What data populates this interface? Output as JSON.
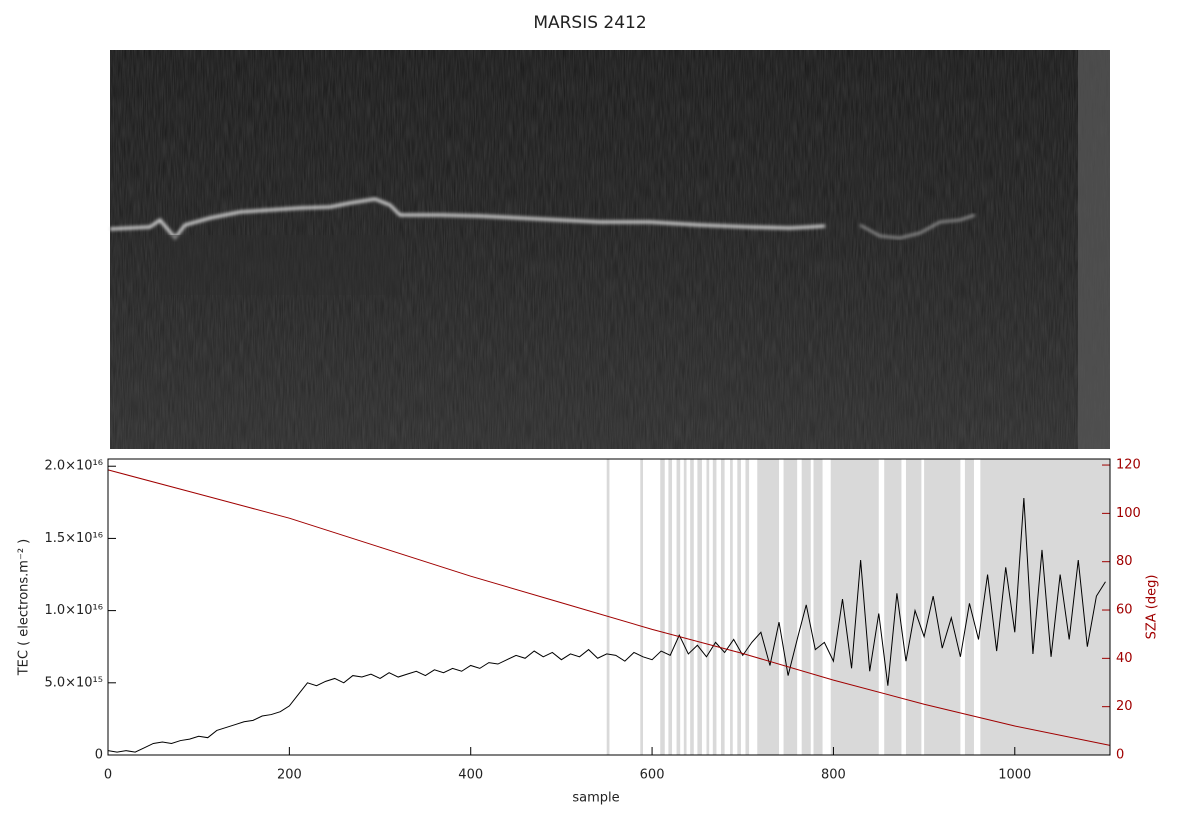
{
  "chart_data": {
    "type": "line",
    "title": "MARSIS 2412",
    "xlabel": "sample",
    "ylabel": "TEC ( electrons.m⁻² )",
    "y2label": "SZA (deg)",
    "xlim": [
      0,
      1105
    ],
    "xticks": [
      0,
      200,
      400,
      600,
      800,
      1000
    ],
    "ylim": [
      0,
      2.05e+16
    ],
    "yticks": [
      0,
      {
        "value": 5000000000000000.0,
        "label": "5.0×10¹⁵"
      },
      {
        "value": 1e+16,
        "label": "1.0×10¹⁶"
      },
      {
        "value": 1.5e+16,
        "label": "1.5×10¹⁶"
      },
      {
        "value": 2e+16,
        "label": "2.0×10¹⁶"
      }
    ],
    "y2lim": [
      0,
      122.5
    ],
    "y2ticks": [
      0,
      20,
      40,
      60,
      80,
      100,
      120
    ],
    "shade_color": "#d9d9d9",
    "shaded_ranges": [
      [
        550,
        553
      ],
      [
        587,
        590
      ],
      [
        609,
        614
      ],
      [
        618,
        622
      ],
      [
        627,
        631
      ],
      [
        635,
        638
      ],
      [
        642,
        646
      ],
      [
        650,
        655
      ],
      [
        660,
        663
      ],
      [
        667,
        671
      ],
      [
        676,
        680
      ],
      [
        686,
        689
      ],
      [
        694,
        698
      ],
      [
        703,
        707
      ],
      [
        716,
        740
      ],
      [
        745,
        760
      ],
      [
        765,
        775
      ],
      [
        778,
        788
      ],
      [
        797,
        850
      ],
      [
        856,
        875
      ],
      [
        880,
        897
      ],
      [
        900,
        940
      ],
      [
        945,
        955
      ],
      [
        962,
        1105
      ]
    ],
    "series": [
      {
        "color": "#000000",
        "x": [
          0,
          10,
          20,
          30,
          40,
          50,
          60,
          70,
          80,
          90,
          100,
          110,
          120,
          130,
          140,
          150,
          160,
          170,
          180,
          190,
          200,
          210,
          220,
          230,
          240,
          250,
          260,
          270,
          280,
          290,
          300,
          310,
          320,
          330,
          340,
          350,
          360,
          370,
          380,
          390,
          400,
          410,
          420,
          430,
          440,
          450,
          460,
          470,
          480,
          490,
          500,
          510,
          520,
          530,
          540,
          550,
          560,
          570,
          580,
          590,
          600,
          610,
          620,
          630,
          640,
          650,
          660,
          670,
          680,
          690,
          700,
          710,
          720,
          730,
          740,
          750,
          760,
          770,
          780,
          790,
          800,
          810,
          820,
          830,
          840,
          850,
          860,
          870,
          880,
          890,
          900,
          910,
          920,
          930,
          940,
          950,
          960,
          970,
          980,
          990,
          1000,
          1010,
          1020,
          1030,
          1040,
          1050,
          1060,
          1070,
          1080,
          1090,
          1100
        ],
        "values": [
          300000000000000.0,
          200000000000000.0,
          300000000000000.0,
          200000000000000.0,
          500000000000000.0,
          800000000000000.0,
          900000000000000.0,
          800000000000000.0,
          1000000000000000.0,
          1100000000000000.0,
          1300000000000000.0,
          1200000000000000.0,
          1700000000000000.0,
          1900000000000000.0,
          2100000000000000.0,
          2300000000000000.0,
          2400000000000000.0,
          2700000000000000.0,
          2800000000000000.0,
          3000000000000000.0,
          3400000000000000.0,
          4200000000000000.0,
          5000000000000000.0,
          4800000000000000.0,
          5100000000000000.0,
          5300000000000000.0,
          5000000000000000.0,
          5500000000000000.0,
          5400000000000000.0,
          5600000000000000.0,
          5300000000000000.0,
          5700000000000000.0,
          5400000000000000.0,
          5600000000000000.0,
          5800000000000000.0,
          5500000000000000.0,
          5900000000000000.0,
          5700000000000000.0,
          6000000000000000.0,
          5800000000000000.0,
          6200000000000000.0,
          6000000000000000.0,
          6400000000000000.0,
          6300000000000000.0,
          6600000000000000.0,
          6900000000000000.0,
          6700000000000000.0,
          7200000000000000.0,
          6800000000000000.0,
          7100000000000000.0,
          6600000000000000.0,
          7000000000000000.0,
          6800000000000000.0,
          7300000000000000.0,
          6700000000000000.0,
          7000000000000000.0,
          6900000000000000.0,
          6500000000000000.0,
          7100000000000000.0,
          6800000000000000.0,
          6600000000000000.0,
          7200000000000000.0,
          6900000000000000.0,
          8300000000000000.0,
          7000000000000000.0,
          7600000000000000.0,
          6800000000000000.0,
          7800000000000000.0,
          7100000000000000.0,
          8000000000000000.0,
          6900000000000000.0,
          7800000000000000.0,
          8500000000000000.0,
          6200000000000000.0,
          9200000000000000.0,
          5500000000000000.0,
          8000000000000000.0,
          1.04e+16,
          7300000000000000.0,
          7800000000000000.0,
          6500000000000000.0,
          1.08e+16,
          6000000000000000.0,
          1.35e+16,
          5800000000000000.0,
          9800000000000000.0,
          4800000000000000.0,
          1.12e+16,
          6500000000000000.0,
          1e+16,
          8200000000000000.0,
          1.1e+16,
          7400000000000000.0,
          9500000000000000.0,
          6800000000000000.0,
          1.05e+16,
          8000000000000000.0,
          1.25e+16,
          7200000000000000.0,
          1.3e+16,
          8500000000000000.0,
          1.78e+16,
          7000000000000000.0,
          1.42e+16,
          6800000000000000.0,
          1.25e+16,
          8000000000000000.0,
          1.35e+16,
          7500000000000000.0,
          1.1e+16,
          1.2e+16
        ]
      },
      {
        "color": "#a00000",
        "axis": "y2",
        "x": [
          0,
          100,
          200,
          300,
          400,
          500,
          600,
          700,
          800,
          900,
          1000,
          1105
        ],
        "values": [
          118,
          108,
          98,
          86,
          74,
          63,
          52,
          42,
          31,
          21,
          12,
          4
        ]
      }
    ]
  }
}
